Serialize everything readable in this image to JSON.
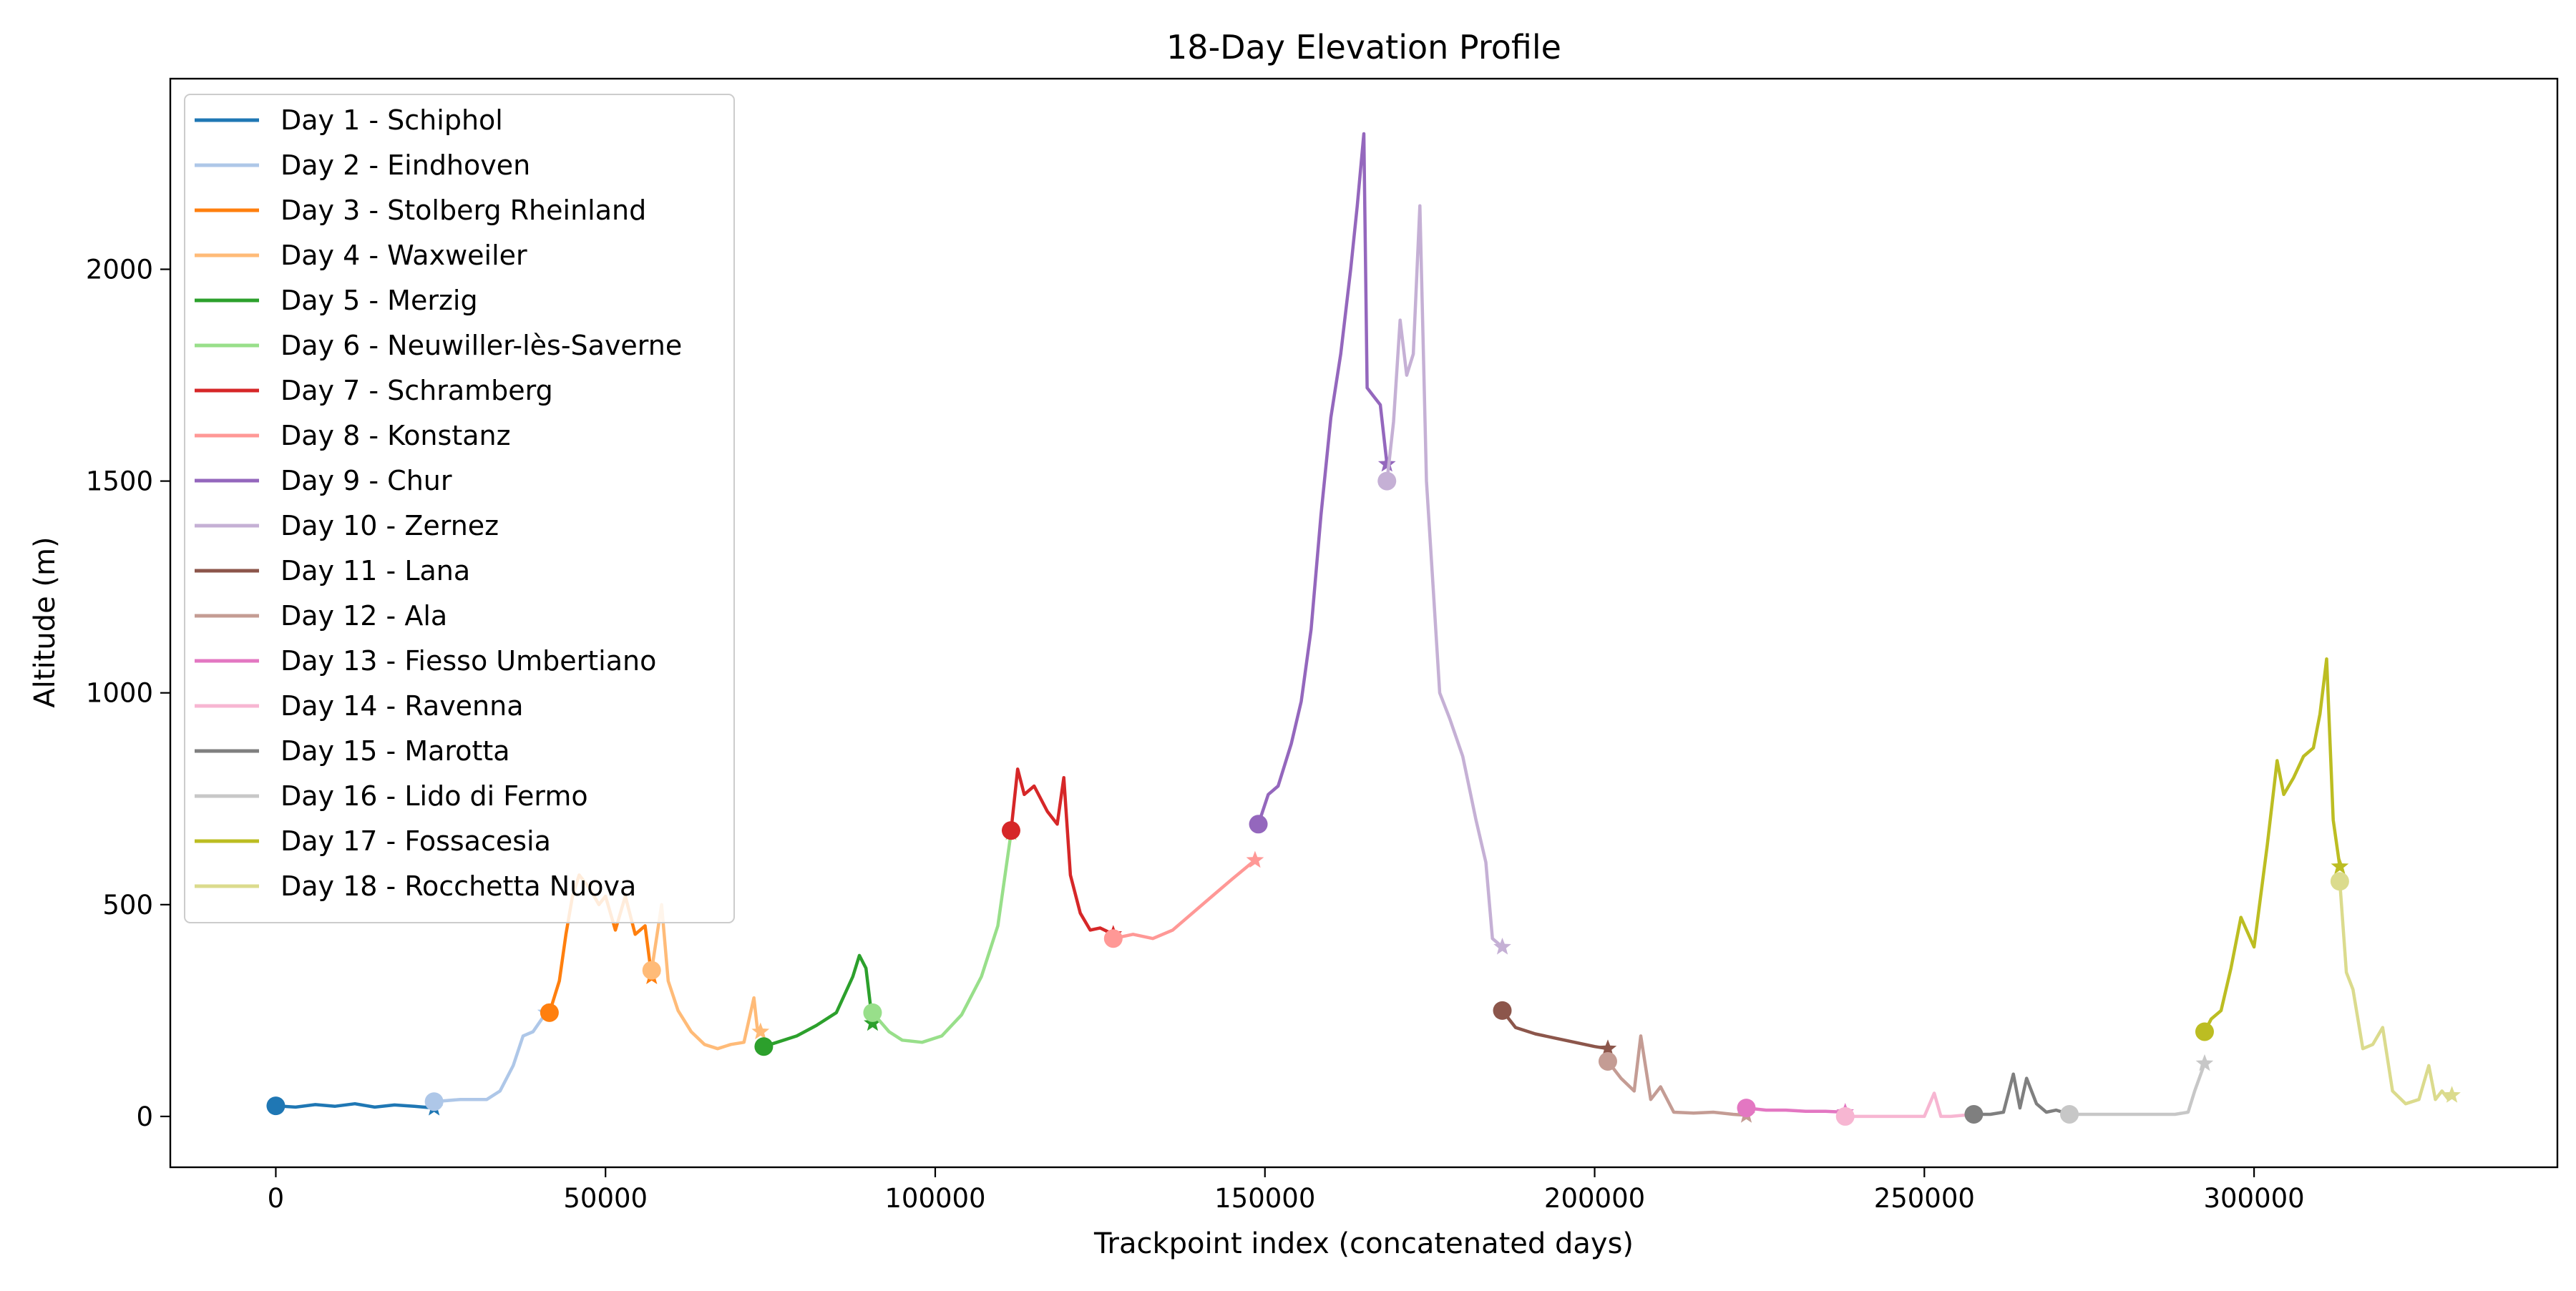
{
  "chart_data": {
    "type": "line",
    "title": "18-Day Elevation Profile",
    "xlabel": "Trackpoint index (concatenated days)",
    "ylabel": "Altitude (m)",
    "xlim": [
      -16000,
      346000
    ],
    "ylim": [
      -120,
      2450
    ],
    "x_ticks": [
      0,
      50000,
      100000,
      150000,
      200000,
      250000,
      300000
    ],
    "y_ticks": [
      0,
      500,
      1000,
      1500,
      2000
    ],
    "grid": false,
    "legend_position": "upper-left",
    "series": [
      {
        "name": "Day 1 - Schiphol",
        "color": "#1f77b4",
        "x": [
          0,
          3000,
          6000,
          9000,
          12000,
          15000,
          18000,
          21000,
          24000
        ],
        "y": [
          25,
          22,
          28,
          24,
          30,
          22,
          27,
          24,
          20
        ]
      },
      {
        "name": "Day 2 - Eindhoven",
        "color": "#aec7e8",
        "x": [
          24000,
          28000,
          32000,
          34000,
          36000,
          37500,
          39000,
          41000
        ],
        "y": [
          35,
          40,
          40,
          60,
          120,
          190,
          200,
          245
        ]
      },
      {
        "name": "Day 3 - Stolberg  Rheinland",
        "color": "#ff7f0e",
        "x": [
          41500,
          43000,
          44000,
          45000,
          46000,
          47500,
          49000,
          50000,
          51500,
          53000,
          54500,
          56000,
          57000
        ],
        "y": [
          245,
          320,
          430,
          520,
          570,
          540,
          500,
          520,
          440,
          520,
          430,
          450,
          330
        ]
      },
      {
        "name": "Day 4 - Waxweiler",
        "color": "#ffbb78",
        "x": [
          57000,
          58500,
          59500,
          61000,
          63000,
          65000,
          67000,
          69000,
          71000,
          72500,
          73000,
          73500
        ],
        "y": [
          345,
          500,
          320,
          250,
          200,
          170,
          160,
          170,
          175,
          280,
          210,
          200
        ]
      },
      {
        "name": "Day 5 - Merzig",
        "color": "#2ca02c",
        "x": [
          74000,
          76000,
          79000,
          82000,
          85000,
          87500,
          88500,
          89500,
          90500
        ],
        "y": [
          165,
          175,
          190,
          215,
          245,
          330,
          380,
          350,
          220
        ]
      },
      {
        "name": "Day 6 - Neuwiller-lès-Saverne",
        "color": "#98df8a",
        "x": [
          90500,
          93000,
          95000,
          98000,
          101000,
          104000,
          107000,
          109500,
          111500
        ],
        "y": [
          245,
          200,
          180,
          175,
          190,
          240,
          330,
          450,
          670
        ]
      },
      {
        "name": "Day 7 - Schramberg",
        "color": "#d62728",
        "x": [
          111500,
          112500,
          113500,
          115000,
          117000,
          118500,
          119500,
          120500,
          122000,
          123500,
          125000,
          127000
        ],
        "y": [
          675,
          820,
          760,
          780,
          720,
          690,
          800,
          570,
          480,
          440,
          445,
          430
        ]
      },
      {
        "name": "Day 8 - Konstanz",
        "color": "#ff9896",
        "x": [
          127000,
          130000,
          133000,
          136000,
          139000,
          142000,
          145000,
          148500
        ],
        "y": [
          420,
          430,
          420,
          440,
          480,
          520,
          560,
          605
        ]
      },
      {
        "name": "Day 9 - Chur",
        "color": "#9467bd",
        "x": [
          149000,
          150500,
          152000,
          154000,
          155500,
          157000,
          158500,
          160000,
          161500,
          163000,
          164000,
          165000,
          165500,
          166500,
          167500,
          168500
        ],
        "y": [
          690,
          760,
          780,
          880,
          980,
          1150,
          1420,
          1650,
          1800,
          2000,
          2150,
          2320,
          1720,
          1700,
          1680,
          1540
        ]
      },
      {
        "name": "Day 10 - Zernez",
        "color": "#c5b0d5",
        "x": [
          168500,
          169500,
          170500,
          171500,
          172500,
          173500,
          174500,
          175500,
          176500,
          178000,
          180000,
          182000,
          183500,
          184500,
          186000
        ],
        "y": [
          1500,
          1640,
          1880,
          1750,
          1800,
          2150,
          1500,
          1250,
          1000,
          940,
          850,
          700,
          600,
          420,
          400
        ]
      },
      {
        "name": "Day 11 - Lana",
        "color": "#8c564b",
        "x": [
          186000,
          188000,
          191000,
          194000,
          197000,
          200000,
          202000
        ],
        "y": [
          250,
          210,
          195,
          185,
          175,
          165,
          160
        ]
      },
      {
        "name": "Day 12 - Ala",
        "color": "#c49c94",
        "x": [
          202000,
          204000,
          206000,
          207000,
          208500,
          210000,
          212000,
          215000,
          218000,
          221000,
          223000
        ],
        "y": [
          130,
          90,
          60,
          190,
          40,
          70,
          10,
          8,
          10,
          5,
          3
        ]
      },
      {
        "name": "Day 13 - Fiesso Umbertiano",
        "color": "#e377c2",
        "x": [
          223000,
          226000,
          229000,
          232000,
          235000,
          238000
        ],
        "y": [
          20,
          15,
          15,
          12,
          12,
          10
        ]
      },
      {
        "name": "Day 14 - Ravenna",
        "color": "#f7b6d2",
        "x": [
          238000,
          241000,
          244000,
          247000,
          250000,
          251500,
          252500,
          254000,
          257500
        ],
        "y": [
          0,
          0,
          0,
          0,
          0,
          55,
          0,
          0,
          5
        ]
      },
      {
        "name": "Day 15 - Marotta",
        "color": "#7f7f7f",
        "x": [
          257500,
          260000,
          262000,
          263500,
          264500,
          265500,
          267000,
          268500,
          270000,
          272000
        ],
        "y": [
          5,
          5,
          10,
          100,
          20,
          90,
          30,
          10,
          15,
          5
        ]
      },
      {
        "name": "Day 16 - Lido di Fermo",
        "color": "#c7c7c7",
        "x": [
          272000,
          276000,
          280000,
          284000,
          288000,
          290000,
          291000,
          292500
        ],
        "y": [
          5,
          5,
          5,
          5,
          5,
          10,
          60,
          125
        ]
      },
      {
        "name": "Day 17 - Fossacesia",
        "color": "#bcbd22",
        "x": [
          292500,
          293500,
          295000,
          296500,
          298000,
          300000,
          302000,
          303500,
          304500,
          306000,
          307500,
          309000,
          310000,
          311000,
          312000,
          313000
        ],
        "y": [
          200,
          230,
          250,
          350,
          470,
          400,
          640,
          840,
          760,
          800,
          850,
          870,
          950,
          1080,
          700,
          590
        ]
      },
      {
        "name": "Day 18 - Rocchetta Nuova",
        "color": "#dbdb8d",
        "x": [
          313000,
          314000,
          315000,
          316500,
          318000,
          319500,
          321000,
          323000,
          325000,
          326500,
          327500,
          328500,
          329500,
          330000
        ],
        "y": [
          555,
          340,
          300,
          160,
          170,
          210,
          60,
          30,
          40,
          120,
          40,
          60,
          40,
          50
        ]
      }
    ]
  }
}
